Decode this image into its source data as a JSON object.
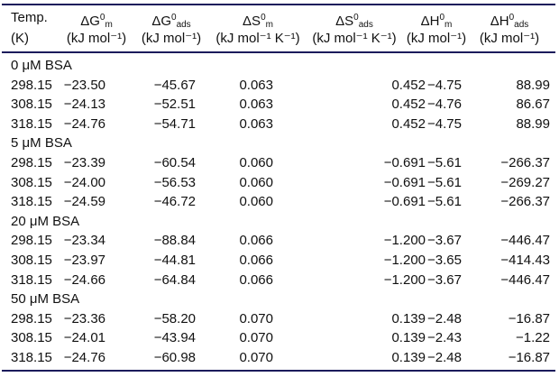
{
  "header": {
    "columns": [
      {
        "symbol": "Temp.",
        "sup": "",
        "sub": "",
        "unit": "(K)"
      },
      {
        "symbol": "ΔG",
        "sup": "0",
        "sub": "m",
        "unit": "(kJ mol⁻¹)"
      },
      {
        "symbol": "ΔG",
        "sup": "0",
        "sub": "ads",
        "unit": "(kJ mol⁻¹)"
      },
      {
        "symbol": "ΔS",
        "sup": "0",
        "sub": "m",
        "unit": "(kJ mol⁻¹ K⁻¹)"
      },
      {
        "symbol": "ΔS",
        "sup": "0",
        "sub": "ads",
        "unit": "(kJ mol⁻¹ K⁻¹)"
      },
      {
        "symbol": "ΔH",
        "sup": "0",
        "sub": "m",
        "unit": "(kJ mol⁻¹)"
      },
      {
        "symbol": "ΔH",
        "sup": "0",
        "sub": "ads",
        "unit": "(kJ mol⁻¹)"
      }
    ]
  },
  "groups": [
    {
      "label": "0 μM BSA",
      "rows": [
        [
          "298.15",
          "−23.50",
          "−45.67",
          "0.063",
          "0.452",
          "−4.75",
          "88.99"
        ],
        [
          "308.15",
          "−24.13",
          "−52.51",
          "0.063",
          "0.452",
          "−4.76",
          "86.67"
        ],
        [
          "318.15",
          "−24.76",
          "−54.71",
          "0.063",
          "0.452",
          "−4.75",
          "88.99"
        ]
      ]
    },
    {
      "label": "5 μM BSA",
      "rows": [
        [
          "298.15",
          "−23.39",
          "−60.54",
          "0.060",
          "−0.691",
          "−5.61",
          "−266.37"
        ],
        [
          "308.15",
          "−24.00",
          "−56.53",
          "0.060",
          "−0.691",
          "−5.61",
          "−269.27"
        ],
        [
          "318.15",
          "−24.59",
          "−46.72",
          "0.060",
          "−0.691",
          "−5.61",
          "−266.37"
        ]
      ]
    },
    {
      "label": "20 μM BSA",
      "rows": [
        [
          "298.15",
          "−23.34",
          "−88.84",
          "0.066",
          "−1.200",
          "−3.67",
          "−446.47"
        ],
        [
          "308.15",
          "−23.97",
          "−44.81",
          "0.066",
          "−1.200",
          "−3.65",
          "−414.43"
        ],
        [
          "318.15",
          "−24.66",
          "−64.84",
          "0.066",
          "−1.200",
          "−3.67",
          "−446.47"
        ]
      ]
    },
    {
      "label": "50 μM BSA",
      "rows": [
        [
          "298.15",
          "−23.36",
          "−58.20",
          "0.070",
          "0.139",
          "−2.48",
          "−16.87"
        ],
        [
          "308.15",
          "−24.01",
          "−43.94",
          "0.070",
          "0.139",
          "−2.43",
          "−1.22"
        ],
        [
          "318.15",
          "−24.76",
          "−60.98",
          "0.070",
          "0.139",
          "−2.48",
          "−16.87"
        ]
      ]
    }
  ],
  "colors": {
    "rule": "#1b1b5c",
    "text": "#111111"
  }
}
